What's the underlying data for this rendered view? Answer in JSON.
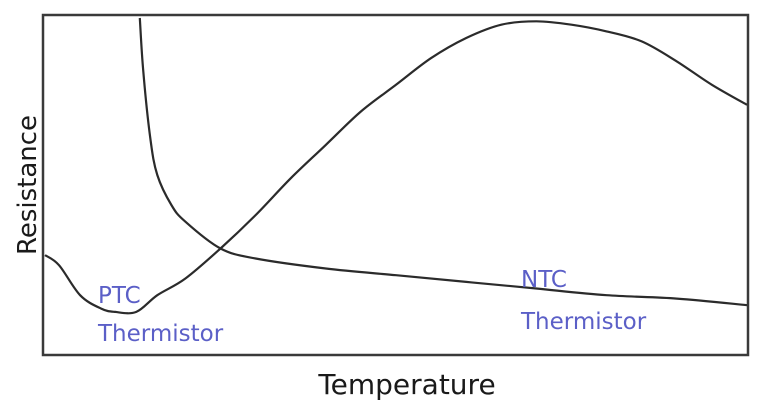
{
  "chart_data": {
    "type": "line",
    "title": "",
    "xlabel": "Temperature",
    "ylabel": "Resistance",
    "xlim": [
      0,
      100
    ],
    "ylim": [
      0,
      100
    ],
    "grid": false,
    "axis_ticks": "none (qualitative axes)",
    "series": [
      {
        "name": "PTC Thermistor",
        "label_lines": [
          "PTC",
          "Thermistor"
        ],
        "color": "#2b2b2b",
        "x": [
          0,
          2,
          5,
          8,
          10,
          13,
          16,
          20,
          25,
          30,
          35,
          40,
          45,
          50,
          55,
          60,
          65,
          70,
          75,
          80,
          85,
          90,
          95,
          100
        ],
        "y": [
          29,
          26,
          17,
          13,
          12,
          12,
          17,
          22,
          31,
          41,
          52,
          62,
          72,
          80,
          88,
          94,
          98,
          99,
          98,
          96,
          93,
          87,
          80,
          74
        ]
      },
      {
        "name": "NTC Thermistor",
        "label_lines": [
          "NTC",
          "Thermistor"
        ],
        "color": "#2b2b2b",
        "x": [
          13.5,
          14,
          15,
          16,
          18,
          20,
          25,
          30,
          40,
          50,
          60,
          70,
          80,
          90,
          100
        ],
        "y": [
          100,
          84,
          64,
          53,
          44,
          39,
          31,
          28,
          25,
          23,
          21,
          19,
          17,
          16,
          14
        ]
      }
    ],
    "label_color": "#5b5fc7"
  }
}
